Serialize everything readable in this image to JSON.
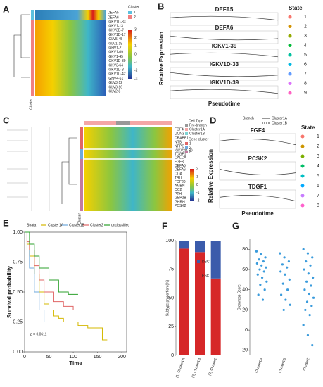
{
  "panel_labels": [
    "A",
    "B",
    "C",
    "D",
    "E",
    "F",
    "G"
  ],
  "heatmap_a": {
    "genes": [
      "DEFA5",
      "DEFA6",
      "IGKV1D-33",
      "IGKV1-13",
      "IGKV3D-7",
      "IGKV1D-17",
      "IGLV5-45",
      "IGLV1-18",
      "IGHV1-2",
      "IGKV1-09",
      "IGKV1-45",
      "IGKV1D-39",
      "IGKV3-64",
      "IGKV1D-8",
      "IGKV1D-42",
      "IGHV4-61",
      "IGLV3-12",
      "IGLV3-16",
      "IGLV2-8"
    ],
    "legend_title": "Cluster",
    "legend_items": [
      "1",
      "2"
    ],
    "legend_colors": [
      "#5bc0de",
      "#f08080"
    ],
    "scale_ticks": [
      3,
      2,
      1,
      0,
      -1,
      -2,
      -3
    ],
    "side_label": "Cluster"
  },
  "pseudotime_b": {
    "genes": [
      "DEFA5",
      "DEFA6",
      "IGKV1-39",
      "IGKV1D-33",
      "IGKV1D-39"
    ],
    "y_label": "Relative Expression",
    "x_label": "Pseudotime",
    "legend_title": "State",
    "states": [
      "1",
      "2",
      "3",
      "4",
      "5",
      "6",
      "7",
      "8",
      "9"
    ],
    "state_colors": [
      "#f8766d",
      "#d39200",
      "#93aa00",
      "#00ba38",
      "#00c19f",
      "#00b9e3",
      "#619cff",
      "#db72fb",
      "#ff61c3"
    ]
  },
  "heatmap_c": {
    "genes": [
      "FGF4",
      "UCN3",
      "CRABP1",
      "NTS",
      "NPPC",
      "IGKV2D-30",
      "TDGF1",
      "CALCA",
      "FGF3",
      "DEFA5",
      "DEFA6",
      "ODA",
      "TRH",
      "FGF20",
      "AMBN",
      "OC2",
      "PTH",
      "GBP2B",
      "GHRH",
      "PCSK2"
    ],
    "cell_type_title": "Cell Type",
    "cell_types": [
      "Pre-branch",
      "Cluster1A",
      "Cluster1B"
    ],
    "cell_type_colors": [
      "#999999",
      "#f4a6a6",
      "#7fd3d3"
    ],
    "gene_cluster_title": "Gene cluster",
    "gene_clusters": [
      "1",
      "2",
      "3"
    ],
    "gene_cluster_colors": [
      "#e06666",
      "#6fa8dc",
      "#c27ba0"
    ],
    "scale_ticks": [
      2,
      1,
      0,
      -1,
      -2
    ],
    "side_label": "Cluster"
  },
  "pseudotime_d": {
    "branch_title": "Branch",
    "branches": [
      "Cluster1A",
      "Cluster1B"
    ],
    "genes": [
      "FGF4",
      "PCSK2",
      "TDGF1"
    ],
    "y_label": "Relative Expression",
    "x_label": "Pseudotime",
    "legend_title": "State",
    "states": [
      "1",
      "2",
      "3",
      "4",
      "5",
      "6",
      "7",
      "8"
    ],
    "state_colors": [
      "#f8766d",
      "#cd9600",
      "#7cae00",
      "#00be67",
      "#00bfc4",
      "#00a9ff",
      "#c77cff",
      "#ff61cc"
    ]
  },
  "chart_data": [
    {
      "type": "km",
      "legend_title": "Strata",
      "x_label": "Time",
      "y_label": "Survival probability",
      "annotation": "p = 0.0611",
      "xlim": [
        0,
        210
      ],
      "ylim": [
        0,
        1
      ],
      "xticks": [
        0,
        50,
        100,
        150,
        200
      ],
      "yticks": [
        {
          "value": 0,
          "label": "0.00"
        },
        {
          "value": 0.25,
          "label": "0.25"
        },
        {
          "value": 0.5,
          "label": "0.50"
        },
        {
          "value": 0.75,
          "label": "0.75"
        },
        {
          "value": 1,
          "label": "1.00"
        }
      ],
      "series": [
        {
          "name": "Cluster1A",
          "color": "#d4b800",
          "x": [
            0,
            5,
            10,
            20,
            30,
            40,
            50,
            60,
            70,
            80,
            100,
            110,
            130,
            150,
            160,
            170
          ],
          "values": [
            1,
            0.9,
            0.8,
            0.65,
            0.5,
            0.4,
            0.35,
            0.3,
            0.28,
            0.25,
            0.25,
            0.22,
            0.2,
            0.2,
            0.1,
            0.1
          ]
        },
        {
          "name": "Cluster1B",
          "color": "#6fa8dc",
          "x": [
            0,
            5,
            10,
            20,
            30,
            40,
            50
          ],
          "values": [
            1,
            0.85,
            0.7,
            0.5,
            0.35,
            0.25,
            0.25
          ]
        },
        {
          "name": "Cluster2",
          "color": "#e06666",
          "x": [
            0,
            5,
            10,
            20,
            30,
            40,
            60,
            80,
            100,
            120,
            140,
            170
          ],
          "values": [
            1,
            0.92,
            0.85,
            0.72,
            0.6,
            0.5,
            0.42,
            0.38,
            0.35,
            0.35,
            0.35,
            0.35
          ]
        },
        {
          "name": "unclassified",
          "color": "#2ca02c",
          "x": [
            0,
            10,
            20,
            30,
            50,
            70,
            90,
            110
          ],
          "values": [
            1,
            0.9,
            0.8,
            0.7,
            0.6,
            0.5,
            0.48,
            0.48
          ]
        }
      ]
    },
    {
      "type": "stacked_bar",
      "y_label": "Subtype proportion (%)",
      "categories": [
        "(1) Cluster1A",
        "(2) Cluster1B",
        "(3) Cluster2"
      ],
      "ylim": [
        0,
        100
      ],
      "yticks": [
        0,
        25,
        50,
        75,
        100
      ],
      "series": [
        {
          "name": "ESC",
          "color": "#d62728",
          "values": [
            93,
            90,
            67
          ]
        },
        {
          "name": "DSC",
          "color": "#3b5bab",
          "values": [
            7,
            10,
            33
          ]
        }
      ]
    },
    {
      "type": "strip",
      "y_label": "Stemness Score",
      "categories": [
        "Cluster1A",
        "Cluster1B",
        "Cluster2"
      ],
      "color": "#3a9bdc",
      "ylim": [
        -25,
        90
      ],
      "yticks": [
        -20,
        0,
        20,
        40,
        60,
        80
      ],
      "groups": [
        [
          78,
          75,
          72,
          70,
          68,
          66,
          64,
          62,
          60,
          58,
          55,
          52,
          48,
          45,
          40,
          35,
          30
        ],
        [
          76,
          72,
          68,
          65,
          62,
          58,
          55,
          50,
          46,
          40,
          35,
          30,
          25,
          20
        ],
        [
          80,
          76,
          72,
          68,
          64,
          60,
          56,
          52,
          48,
          44,
          40,
          36,
          32,
          28,
          24,
          20,
          15,
          5,
          -5,
          -15
        ]
      ]
    }
  ]
}
